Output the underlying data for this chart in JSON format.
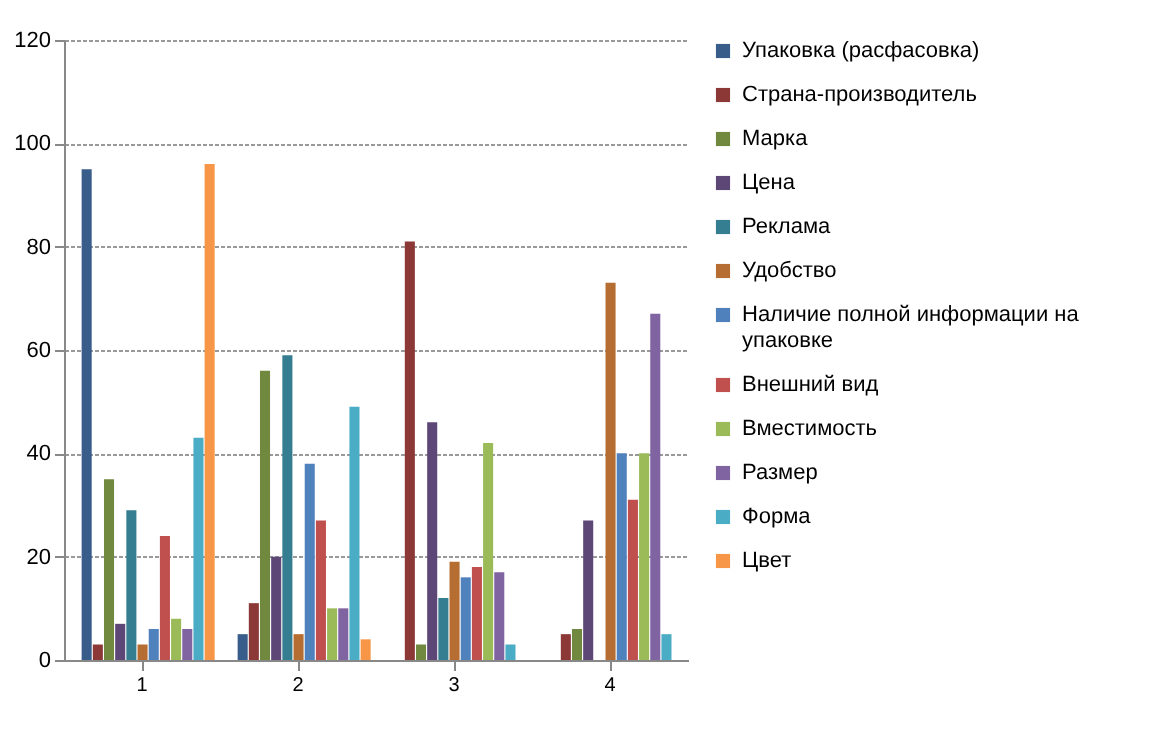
{
  "chart_data": {
    "type": "bar",
    "categories": [
      "1",
      "2",
      "3",
      "4"
    ],
    "series": [
      {
        "name": "Упаковка (расфасовка)",
        "color": "#385d8a",
        "values": [
          95,
          5,
          0,
          0
        ]
      },
      {
        "name": "Страна-производитель",
        "color": "#8c3836",
        "values": [
          3,
          11,
          81,
          5
        ]
      },
      {
        "name": "Марка",
        "color": "#71893f",
        "values": [
          35,
          56,
          3,
          6
        ]
      },
      {
        "name": "Цена",
        "color": "#5c4776",
        "values": [
          7,
          20,
          46,
          27
        ]
      },
      {
        "name": "Реклама",
        "color": "#357d91",
        "values": [
          29,
          59,
          12,
          0
        ]
      },
      {
        "name": "Удобство",
        "color": "#b66d31",
        "values": [
          3,
          5,
          19,
          73
        ]
      },
      {
        "name": "Наличие полной информации на упаковке",
        "color": "#4f81bd",
        "values": [
          6,
          38,
          16,
          40
        ]
      },
      {
        "name": "Внешний вид",
        "color": "#c0504d",
        "values": [
          24,
          27,
          18,
          31
        ]
      },
      {
        "name": "Вместимость",
        "color": "#9bbb59",
        "values": [
          8,
          10,
          42,
          40
        ]
      },
      {
        "name": "Размер",
        "color": "#8064a2",
        "values": [
          6,
          10,
          17,
          67
        ]
      },
      {
        "name": "Форма",
        "color": "#4bacc6",
        "values": [
          43,
          49,
          3,
          5
        ]
      },
      {
        "name": "Цвет",
        "color": "#f79646",
        "values": [
          96,
          4,
          0,
          0
        ]
      }
    ],
    "ylim": [
      0,
      120
    ],
    "yticks": [
      0,
      20,
      40,
      60,
      80,
      100,
      120
    ],
    "grid": "y",
    "legend": "right"
  }
}
